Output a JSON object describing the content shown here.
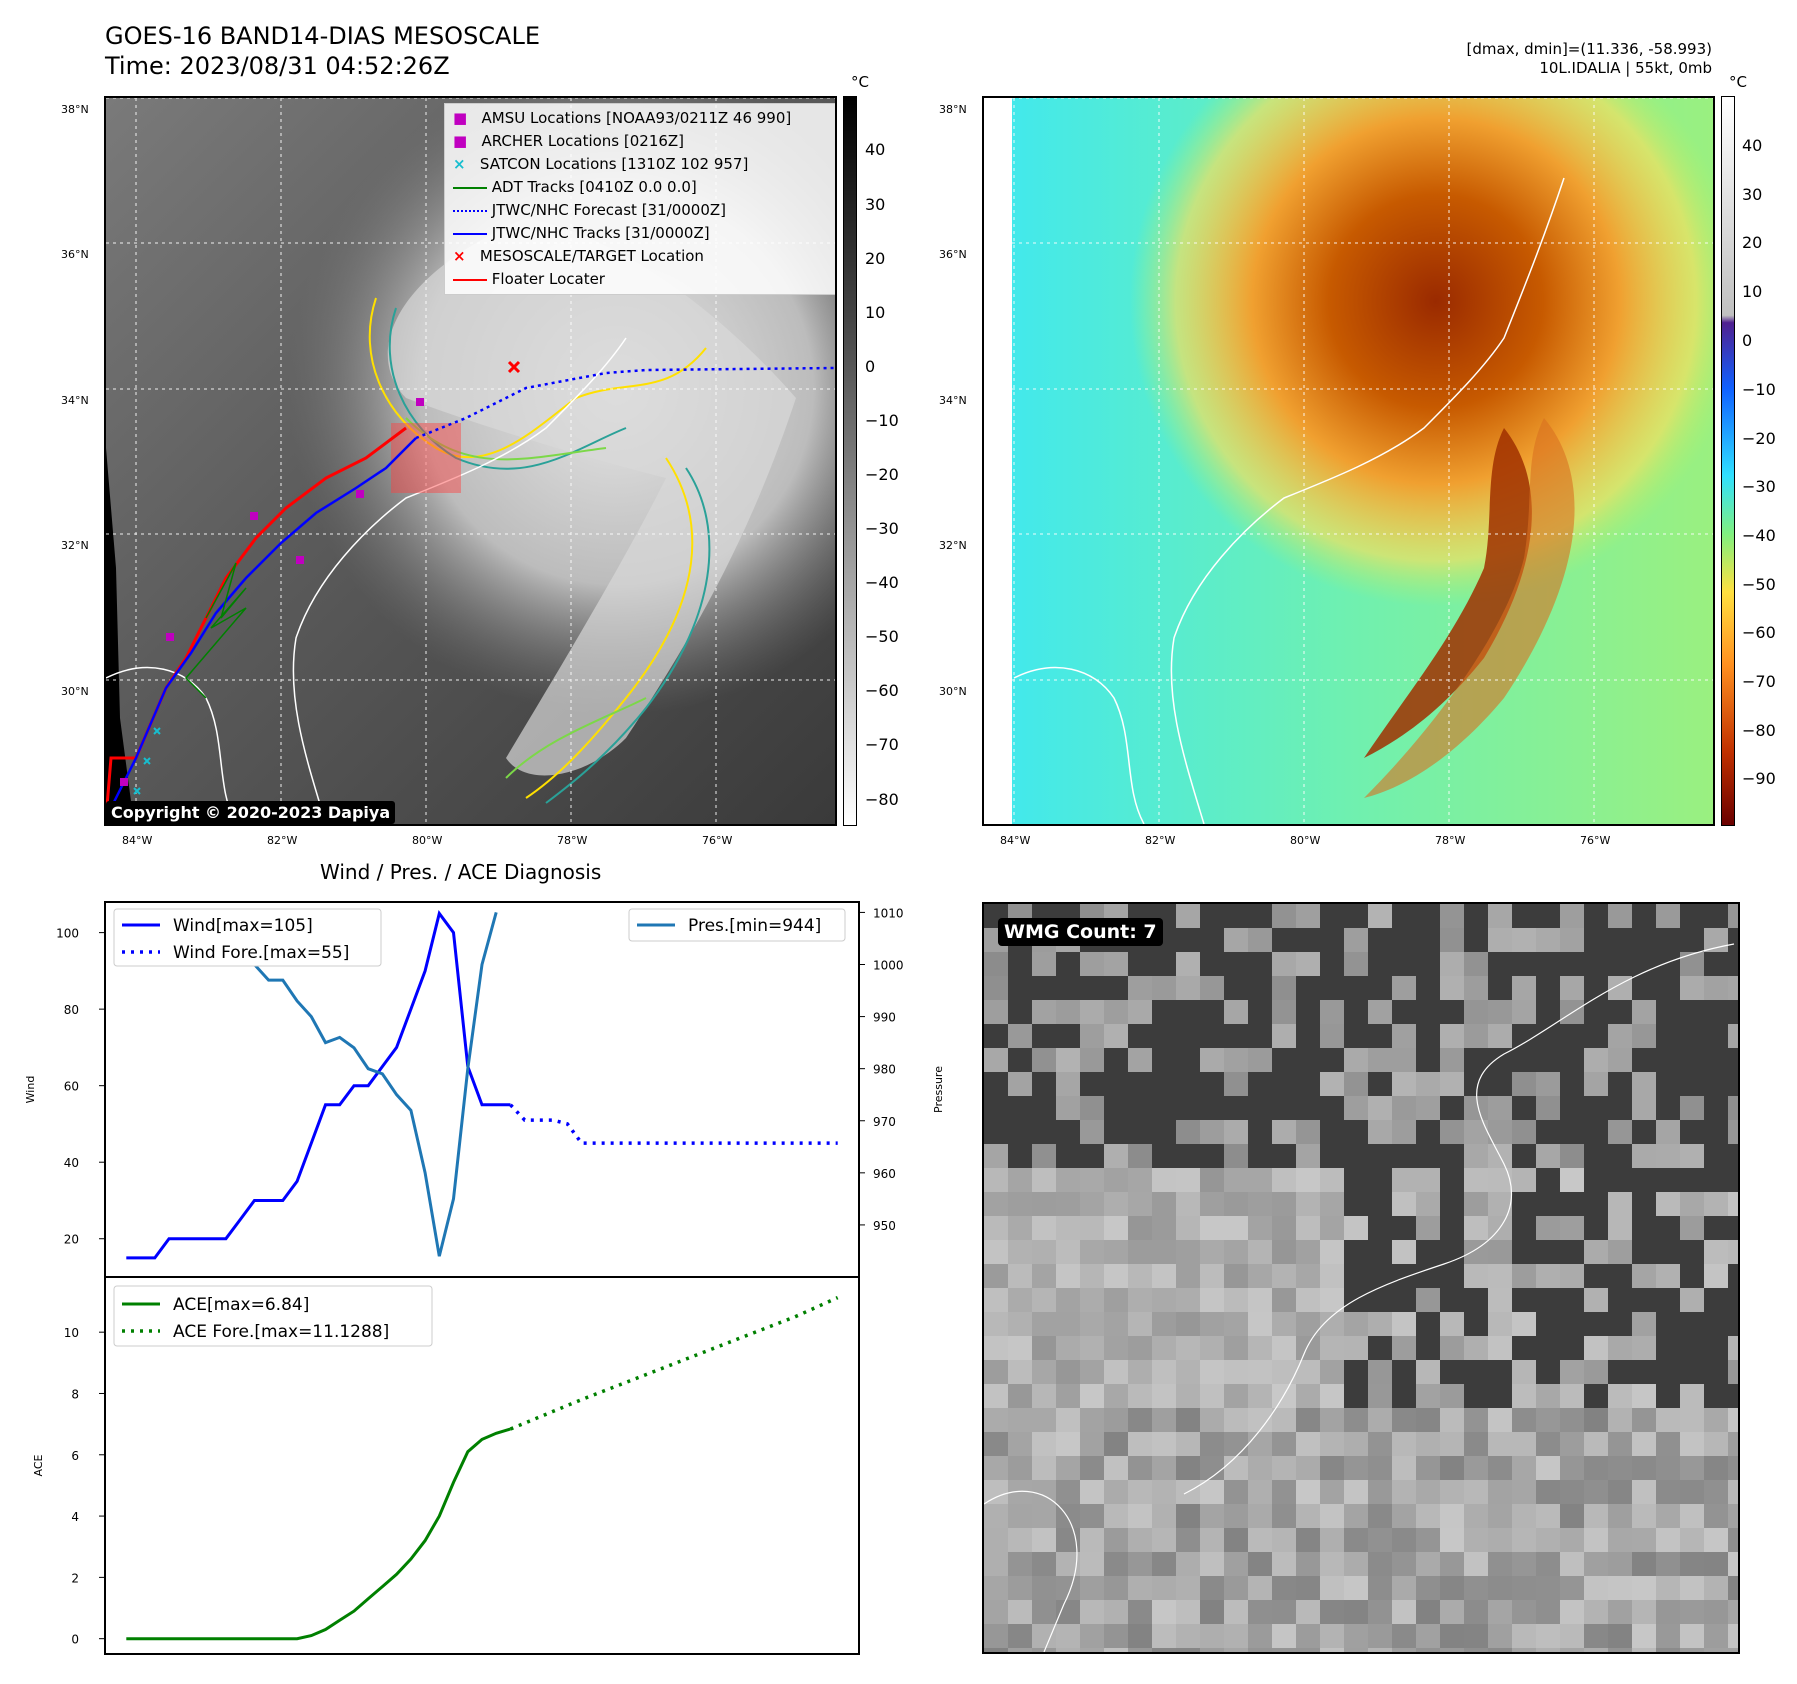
{
  "header": {
    "title_line1": "GOES-16 BAND14-DIAS MESOSCALE",
    "title_line2": "Time: 2023/08/31 04:52:26Z",
    "range_line": "[dmax, dmin]=(11.336, -58.993)",
    "storm_line": "10L.IDALIA | 55kt, 0mb"
  },
  "map_axes": {
    "lat_labels": [
      "38°N",
      "36°N",
      "34°N",
      "32°N",
      "30°N"
    ],
    "lon_labels": [
      "84°W",
      "82°W",
      "80°W",
      "78°W",
      "76°W"
    ]
  },
  "colorbar_left": {
    "unit": "°C",
    "ticks": [
      "40",
      "30",
      "20",
      "10",
      "0",
      "−10",
      "−20",
      "−30",
      "−40",
      "−50",
      "−60",
      "−70",
      "−80"
    ]
  },
  "colorbar_right": {
    "unit": "°C",
    "ticks": [
      "40",
      "30",
      "20",
      "10",
      "0",
      "−10",
      "−20",
      "−30",
      "−40",
      "−50",
      "−60",
      "−70",
      "−80",
      "−90"
    ]
  },
  "map_legend": [
    {
      "label": "AMSU Locations [NOAA93/0211Z 46 990]",
      "color": "#c000c0",
      "marker": "square"
    },
    {
      "label": "ARCHER Locations [0216Z]",
      "color": "#c000c0",
      "marker": "square"
    },
    {
      "label": "SATCON Locations [1310Z 102 957]",
      "color": "#17becf",
      "marker": "x"
    },
    {
      "label": "ADT Tracks [0410Z 0.0 0.0]",
      "color": "#008000",
      "marker": "line"
    },
    {
      "label": "JTWC/NHC Forecast [31/0000Z]",
      "color": "#0000ff",
      "marker": "dotted"
    },
    {
      "label": "JTWC/NHC Tracks [31/0000Z]",
      "color": "#0000ff",
      "marker": "line-dot"
    },
    {
      "label": "MESOSCALE/TARGET Location",
      "color": "#ff0000",
      "marker": "x"
    },
    {
      "label": "Floater Locater",
      "color": "#ff0000",
      "marker": "line"
    }
  ],
  "copyright": "Copyright © 2020-2023 Dapiya",
  "wmg_label": "WMG Count: 7",
  "colors": {
    "wind": "#0000ff",
    "pressure": "#1f77b4",
    "ace": "#008000",
    "track_red": "#ff0000"
  },
  "chart_data": [
    {
      "type": "line",
      "title": "Wind / Pres. / ACE Diagnosis",
      "ylabel": "Wind",
      "y2label": "Pressure",
      "ylim": [
        10,
        108
      ],
      "y2lim": [
        940,
        1012
      ],
      "yticks": [
        20,
        40,
        60,
        80,
        100
      ],
      "y2ticks": [
        950,
        960,
        970,
        980,
        990,
        1000,
        1010
      ],
      "legend_left": [
        "Wind[max=105]",
        "Wind Fore.[max=55]"
      ],
      "legend_right": [
        "Pres.[min=944]"
      ],
      "x": [
        0,
        1,
        2,
        3,
        4,
        5,
        6,
        7,
        8,
        9,
        10,
        11,
        12,
        13,
        14,
        15,
        16,
        17,
        18,
        19,
        20,
        21,
        22,
        23,
        24,
        25,
        26,
        27
      ],
      "series": [
        {
          "name": "Wind[max=105]",
          "style": "solid",
          "x": [
            0,
            1,
            2,
            3,
            4,
            5,
            6,
            7,
            8,
            9,
            10,
            11,
            12,
            13,
            14,
            15,
            16,
            17,
            18,
            19,
            20,
            21,
            22,
            23,
            24,
            25,
            26,
            27
          ],
          "values": [
            15,
            15,
            15,
            20,
            20,
            20,
            20,
            20,
            25,
            30,
            30,
            30,
            35,
            45,
            55,
            55,
            60,
            60,
            65,
            70,
            80,
            90,
            105,
            100,
            65,
            55,
            55,
            55
          ]
        },
        {
          "name": "Wind Fore.[max=55]",
          "style": "dotted",
          "x": [
            27,
            28,
            29,
            30,
            31,
            32,
            33,
            34,
            35,
            36,
            37,
            38,
            39,
            40,
            41,
            42,
            43,
            44,
            45,
            46,
            47,
            48,
            49,
            50
          ],
          "values": [
            55,
            51,
            51,
            51,
            50,
            45,
            45,
            45,
            45,
            45,
            45,
            45,
            45,
            45,
            45,
            45,
            45,
            45,
            45,
            45,
            45,
            45,
            45,
            45
          ]
        },
        {
          "name": "Pres.[min=944]",
          "axis": "right",
          "style": "solid",
          "x": [
            0,
            1,
            2,
            3,
            4,
            5,
            6,
            7,
            8,
            9,
            10,
            11,
            12,
            13,
            14,
            15,
            16,
            17,
            18,
            19,
            20,
            21,
            22,
            23,
            24,
            25,
            26
          ],
          "values": [
            1010,
            1010,
            1010,
            1005,
            1004,
            1004,
            1003,
            1003,
            1002,
            1000,
            997,
            997,
            993,
            990,
            985,
            986,
            984,
            980,
            979,
            975,
            972,
            960,
            944,
            955,
            980,
            1000,
            1010
          ]
        }
      ]
    },
    {
      "type": "line",
      "ylabel": "ACE",
      "ylim": [
        -0.5,
        11.8
      ],
      "yticks": [
        0,
        2,
        4,
        6,
        8,
        10
      ],
      "legend": [
        "ACE[max=6.84]",
        "ACE Fore.[max=11.1288]"
      ],
      "series": [
        {
          "name": "ACE[max=6.84]",
          "style": "solid",
          "x": [
            0,
            1,
            2,
            3,
            4,
            5,
            6,
            7,
            8,
            9,
            10,
            11,
            12,
            13,
            14,
            15,
            16,
            17,
            18,
            19,
            20,
            21,
            22,
            23,
            24,
            25,
            26,
            27
          ],
          "values": [
            0,
            0,
            0,
            0,
            0,
            0,
            0,
            0,
            0,
            0,
            0,
            0,
            0,
            0.1,
            0.3,
            0.6,
            0.9,
            1.3,
            1.7,
            2.1,
            2.6,
            3.2,
            4.0,
            5.1,
            6.1,
            6.5,
            6.7,
            6.84
          ]
        },
        {
          "name": "ACE Fore.[max=11.1288]",
          "style": "dotted",
          "x": [
            27,
            32,
            37,
            42,
            47,
            50
          ],
          "values": [
            6.84,
            7.8,
            8.7,
            9.6,
            10.5,
            11.1288
          ]
        }
      ]
    }
  ]
}
